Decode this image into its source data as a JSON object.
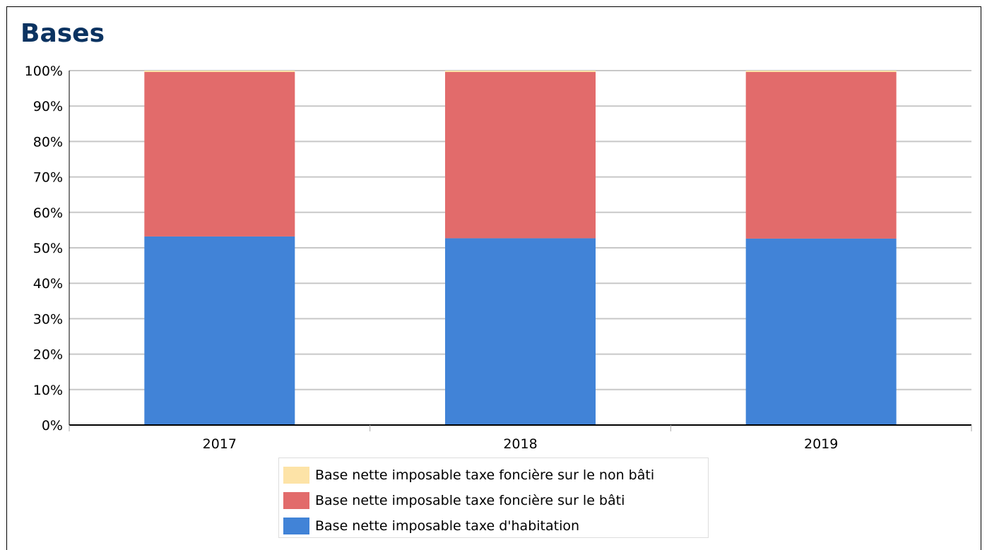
{
  "title": "Bases",
  "chart_data": {
    "type": "bar",
    "stacked": true,
    "percent": true,
    "categories": [
      "2017",
      "2018",
      "2019"
    ],
    "series": [
      {
        "name": "Base nette imposable taxe d'habitation",
        "color": "#4183d7",
        "values": [
          53.2,
          52.7,
          52.6
        ]
      },
      {
        "name": "Base nette imposable taxe foncière sur le bâti",
        "color": "#e26b6b",
        "values": [
          46.4,
          46.9,
          47.0
        ]
      },
      {
        "name": "Base nette imposable taxe foncière sur le non bâti",
        "color": "#fde3a7",
        "values": [
          0.4,
          0.4,
          0.4
        ]
      }
    ],
    "ylim": [
      0,
      100
    ],
    "yticks": [
      "0%",
      "10%",
      "20%",
      "30%",
      "40%",
      "50%",
      "60%",
      "70%",
      "80%",
      "90%",
      "100%"
    ],
    "grid": true,
    "legend_position": "bottom"
  },
  "legend": [
    {
      "label": "Base nette imposable taxe foncière sur le non bâti",
      "color": "#fde3a7"
    },
    {
      "label": "Base nette imposable taxe foncière sur le bâti",
      "color": "#e26b6b"
    },
    {
      "label": "Base nette imposable taxe d'habitation",
      "color": "#4183d7"
    }
  ]
}
